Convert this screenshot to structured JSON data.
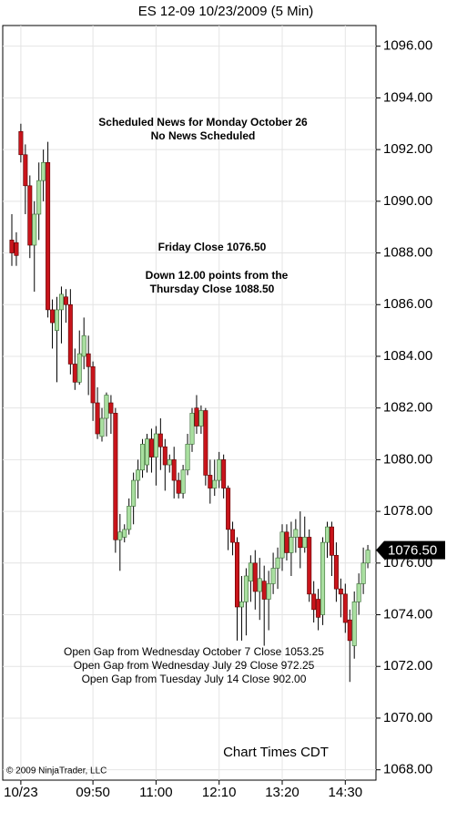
{
  "chart_data": {
    "type": "candlestick",
    "title": "ES 12-09  10/23/2009 (5 Min)",
    "categories": [
      null,
      null,
      "10/23",
      null,
      null,
      null,
      null,
      null,
      null,
      null,
      null,
      null,
      null,
      null,
      null,
      null,
      null,
      null,
      "09:50",
      null,
      null,
      null,
      null,
      null,
      null,
      null,
      null,
      null,
      null,
      null,
      null,
      null,
      "11:00",
      null,
      null,
      null,
      null,
      null,
      null,
      null,
      null,
      null,
      null,
      null,
      null,
      null,
      "12:10",
      null,
      null,
      null,
      null,
      null,
      null,
      null,
      null,
      null,
      null,
      null,
      null,
      null,
      "13:20",
      null,
      null,
      null,
      null,
      null,
      null,
      null,
      null,
      null,
      null,
      null,
      null,
      null,
      "14:30",
      null,
      null,
      null,
      null,
      null
    ],
    "open": [
      1088.5,
      1088.4,
      1092.7,
      1091.8,
      1090.6,
      1088.3,
      1089.5,
      1090.8,
      1091.5,
      1085.8,
      1085.0,
      1085.8,
      1086.3,
      1086.0,
      1083.7,
      1083.0,
      1084.0,
      1084.1,
      1083.6,
      1082.2,
      1080.9,
      1081.6,
      1082.2,
      1081.8,
      1076.9,
      1077.0,
      1077.3,
      1078.2,
      1079.2,
      1079.6,
      1079.8,
      1080.8,
      1080.1,
      1081.0,
      1080.5,
      1079.8,
      1080.0,
      1079.2,
      1078.7,
      1079.6,
      1080.6,
      1082.0,
      1081.3,
      1081.9,
      1079.4,
      1078.9,
      1079.2,
      1080.0,
      1078.9,
      1077.3,
      1076.8,
      1074.3,
      1074.5,
      1075.3,
      1076.0,
      1074.9,
      1075.3,
      1074.6,
      1075.2,
      1075.8,
      1076.2,
      1077.2,
      1076.4,
      1077.0,
      1077.0,
      1076.6,
      1077.0,
      1074.8,
      1074.6,
      1074.0,
      1076.8,
      1077.4,
      1076.3,
      1075.0,
      1074.8,
      1073.8,
      1072.8,
      1074.5,
      1075.2,
      1076.0
    ],
    "high": [
      1089.5,
      1088.8,
      1093.0,
      1092.2,
      1091.0,
      1090.0,
      1091.5,
      1092.0,
      1092.3,
      1086.2,
      1086.3,
      1086.7,
      1086.6,
      1086.6,
      1084.3,
      1085.0,
      1085.5,
      1084.8,
      1083.8,
      1082.8,
      1082.0,
      1082.6,
      1082.5,
      1082.0,
      1077.9,
      1077.5,
      1078.5,
      1079.5,
      1080.0,
      1080.8,
      1081.0,
      1081.2,
      1081.3,
      1081.6,
      1080.8,
      1080.2,
      1080.5,
      1079.5,
      1079.8,
      1081.0,
      1082.0,
      1082.5,
      1082.1,
      1082.0,
      1080.0,
      1080.0,
      1080.3,
      1080.2,
      1079.0,
      1077.6,
      1077.0,
      1075.5,
      1075.8,
      1076.3,
      1076.5,
      1076.2,
      1075.9,
      1075.7,
      1076.4,
      1076.6,
      1077.5,
      1077.5,
      1077.6,
      1077.7,
      1078.0,
      1077.8,
      1077.3,
      1075.3,
      1075.0,
      1077.0,
      1077.6,
      1077.6,
      1076.8,
      1075.4,
      1075.2,
      1074.2,
      1074.9,
      1075.6,
      1076.6,
      1076.7
    ],
    "low": [
      1087.5,
      1087.5,
      1091.5,
      1089.5,
      1087.8,
      1086.5,
      1088.5,
      1090.0,
      1085.5,
      1084.3,
      1083.0,
      1084.5,
      1085.3,
      1083.3,
      1082.7,
      1082.9,
      1083.5,
      1082.5,
      1081.5,
      1080.8,
      1080.7,
      1080.9,
      1081.0,
      1076.4,
      1075.7,
      1076.8,
      1077.1,
      1077.5,
      1078.5,
      1079.3,
      1079.5,
      1079.5,
      1079.0,
      1079.6,
      1078.8,
      1079.5,
      1078.5,
      1078.5,
      1078.5,
      1079.4,
      1080.3,
      1081.0,
      1081.0,
      1079.0,
      1078.3,
      1078.6,
      1078.9,
      1078.5,
      1076.5,
      1076.3,
      1073.0,
      1073.0,
      1073.2,
      1074.5,
      1074.2,
      1073.8,
      1072.8,
      1073.4,
      1074.8,
      1075.0,
      1075.7,
      1076.1,
      1075.5,
      1076.4,
      1075.8,
      1076.4,
      1074.5,
      1073.7,
      1073.4,
      1073.6,
      1076.2,
      1075.5,
      1074.5,
      1073.9,
      1073.3,
      1071.4,
      1072.3,
      1074.0,
      1074.8,
      1075.8
    ],
    "close": [
      1088.0,
      1087.9,
      1091.8,
      1090.6,
      1088.3,
      1089.5,
      1090.8,
      1091.5,
      1085.8,
      1085.3,
      1085.8,
      1086.4,
      1086.0,
      1083.7,
      1083.0,
      1084.1,
      1084.8,
      1083.6,
      1082.2,
      1081.0,
      1081.6,
      1082.5,
      1081.8,
      1076.9,
      1077.2,
      1077.3,
      1078.2,
      1079.2,
      1079.6,
      1080.6,
      1080.8,
      1080.1,
      1081.0,
      1080.5,
      1079.8,
      1080.0,
      1079.2,
      1078.7,
      1079.6,
      1080.6,
      1081.8,
      1081.3,
      1081.9,
      1079.4,
      1078.9,
      1079.2,
      1080.0,
      1078.9,
      1077.3,
      1076.8,
      1074.3,
      1074.5,
      1075.5,
      1076.0,
      1074.9,
      1075.4,
      1074.6,
      1075.2,
      1075.8,
      1076.2,
      1077.2,
      1076.4,
      1077.0,
      1077.3,
      1076.6,
      1077.0,
      1074.8,
      1074.2,
      1073.9,
      1076.8,
      1077.4,
      1076.3,
      1075.0,
      1074.8,
      1073.7,
      1073.0,
      1074.5,
      1075.2,
      1076.0,
      1076.5
    ],
    "up_color": "#a9dfa0",
    "down_color": "#c8141b",
    "ylim": [
      1067.6,
      1096.8
    ],
    "yticks": [
      {
        "value": 1068,
        "label": "1068.00"
      },
      {
        "value": 1070,
        "label": "1070.00"
      },
      {
        "value": 1072,
        "label": "1072.00"
      },
      {
        "value": 1074,
        "label": "1074.00"
      },
      {
        "value": 1076,
        "label": "1076.00"
      },
      {
        "value": 1078,
        "label": "1078.00"
      },
      {
        "value": 1080,
        "label": "1080.00"
      },
      {
        "value": 1082,
        "label": "1082.00"
      },
      {
        "value": 1084,
        "label": "1084.00"
      },
      {
        "value": 1086,
        "label": "1086.00"
      },
      {
        "value": 1088,
        "label": "1088.00"
      },
      {
        "value": 1090,
        "label": "1090.00"
      },
      {
        "value": 1092,
        "label": "1092.00"
      },
      {
        "value": 1094,
        "label": "1094.00"
      },
      {
        "value": 1096,
        "label": "1096.00"
      }
    ],
    "last_price": {
      "value": 1076.5,
      "label": "1076.50"
    },
    "grid": true,
    "annotations": [
      "Scheduled News for Monday October 26",
      "No News Scheduled",
      "Friday Close 1076.50",
      "Down 12.00 points from the",
      "Thursday Close 1088.50",
      "Open Gap from Wednesday October 7 Close 1053.25",
      "Open Gap from Wednesday July 29 Close 972.25",
      "Open Gap from Tuesday July 14 Close 902.00",
      "Chart Times CDT",
      "© 2009 NinjaTrader, LLC"
    ]
  }
}
